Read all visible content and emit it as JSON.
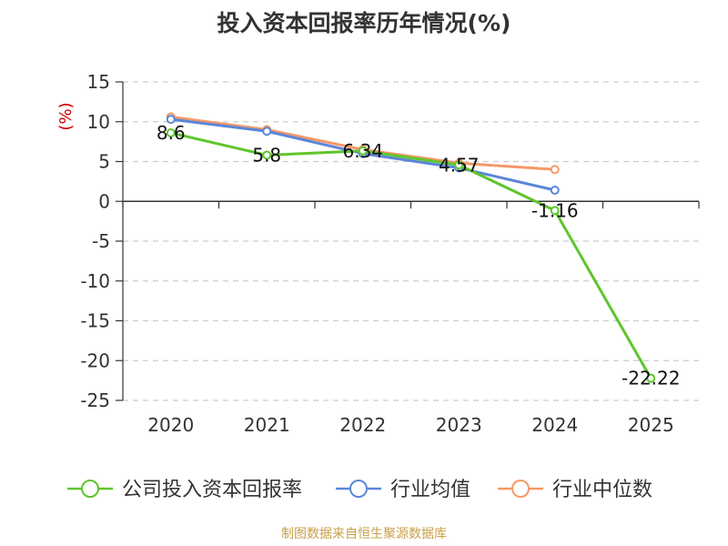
{
  "chart_data": {
    "type": "line",
    "title": "投入资本回报率历年情况(%)",
    "ylabel": "(%)",
    "categories": [
      "2020",
      "2021",
      "2022",
      "2023",
      "2024",
      "2025"
    ],
    "ylim": [
      -25,
      15
    ],
    "yticks": [
      15,
      10,
      5,
      0,
      -5,
      -10,
      -15,
      -20,
      -25
    ],
    "grid": true,
    "legend_position": "bottom",
    "series": [
      {
        "name": "公司投入资本回报率",
        "color": "#5fc52e",
        "values": [
          8.6,
          5.8,
          6.34,
          4.57,
          -1.16,
          -22.22
        ],
        "labels": [
          "8.6",
          "5.8",
          "6.34",
          "4.57",
          "-1.16",
          "-22.22"
        ]
      },
      {
        "name": "行业均值",
        "color": "#5b86d8",
        "values": [
          10.3,
          8.8,
          6.0,
          4.2,
          1.4,
          null
        ]
      },
      {
        "name": "行业中位数",
        "color": "#f59868",
        "values": [
          10.6,
          9.0,
          6.5,
          4.8,
          4.0,
          null
        ]
      }
    ]
  },
  "source": "制图数据来自恒生聚源数据库"
}
